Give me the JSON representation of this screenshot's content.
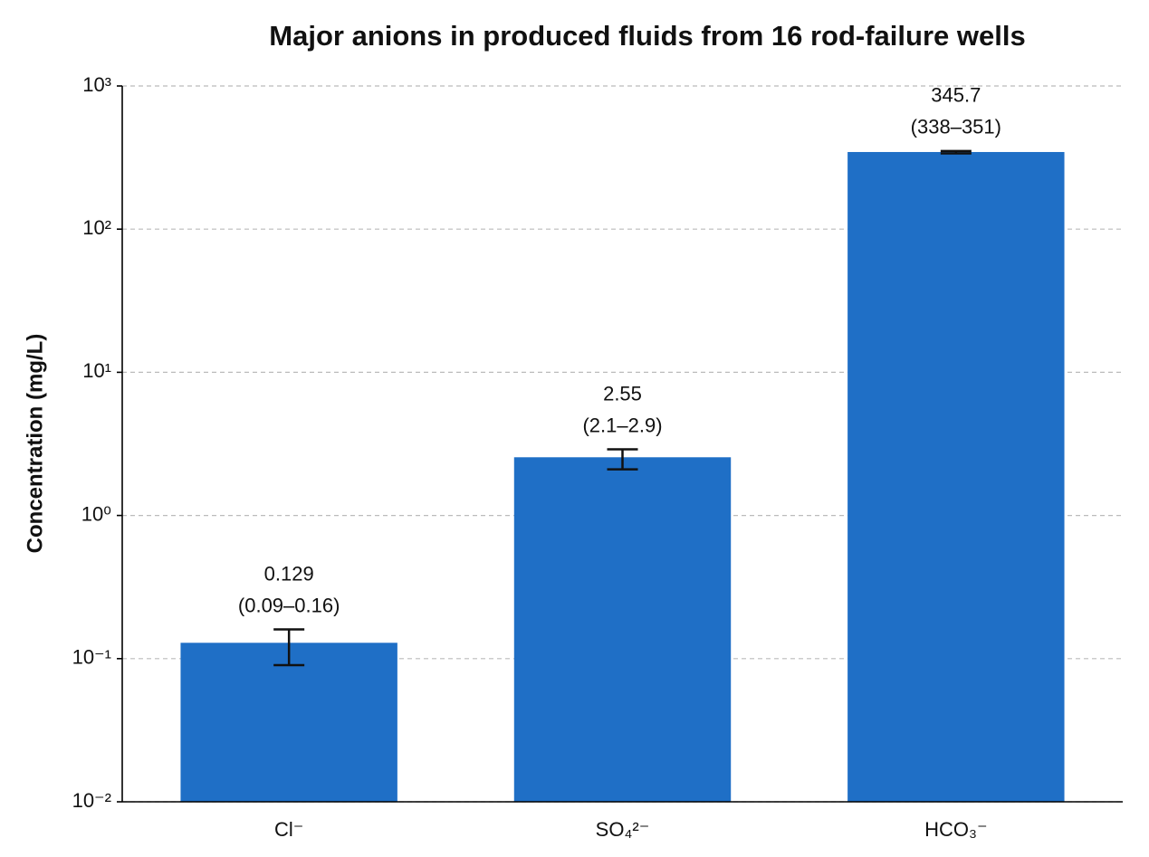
{
  "chart_data": {
    "type": "bar",
    "title": "Major anions in produced fluids from 16 rod-failure wells",
    "y_label": "Concentration (mg/L)",
    "categories": [
      "Cl⁻",
      "SO₄²⁻",
      "HCO₃⁻"
    ],
    "values": [
      0.129,
      2.55,
      345.7
    ],
    "lower": [
      0.09,
      2.1,
      338
    ],
    "upper": [
      0.16,
      2.9,
      351
    ],
    "range_labels": [
      "(0.09–0.16)",
      "(2.1–2.9)",
      "(338–351)"
    ],
    "color": "#1f6fc6",
    "yscale": "log",
    "ylim": [
      0.01,
      1000
    ],
    "yticks": [
      {
        "value": 0.01,
        "label": "10⁻²"
      },
      {
        "value": 0.1,
        "label": "10⁻¹"
      },
      {
        "value": 1,
        "label": "10⁰"
      },
      {
        "value": 10,
        "label": "10¹"
      },
      {
        "value": 100,
        "label": "10²"
      },
      {
        "value": 1000,
        "label": "10³"
      }
    ],
    "grid": true
  }
}
